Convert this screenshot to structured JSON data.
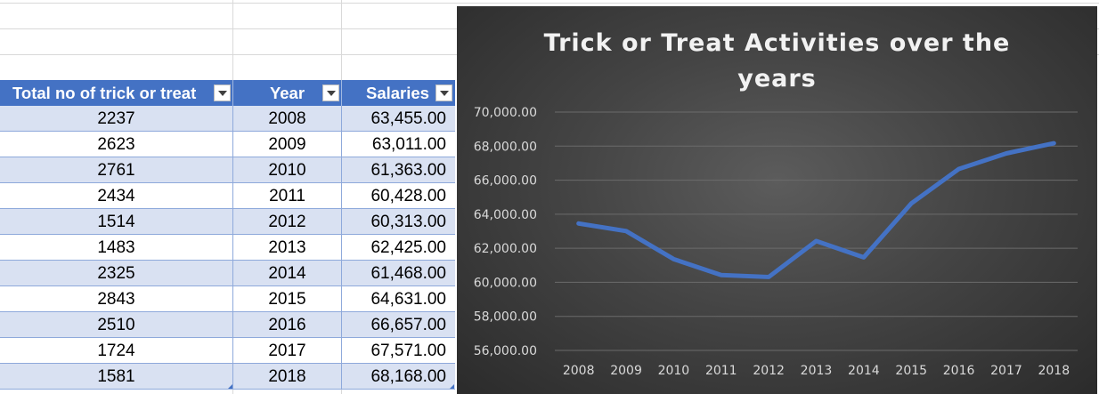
{
  "table": {
    "headers": [
      "Total no of trick or treat",
      "Year",
      "Salaries"
    ],
    "rows": [
      [
        "2237",
        "2008",
        "63,455.00"
      ],
      [
        "2623",
        "2009",
        "63,011.00"
      ],
      [
        "2761",
        "2010",
        "61,363.00"
      ],
      [
        "2434",
        "2011",
        "60,428.00"
      ],
      [
        "1514",
        "2012",
        "60,313.00"
      ],
      [
        "1483",
        "2013",
        "62,425.00"
      ],
      [
        "2325",
        "2014",
        "61,468.00"
      ],
      [
        "2843",
        "2015",
        "64,631.00"
      ],
      [
        "2510",
        "2016",
        "66,657.00"
      ],
      [
        "1724",
        "2017",
        "67,571.00"
      ],
      [
        "1581",
        "2018",
        "68,168.00"
      ]
    ]
  },
  "chart_data": {
    "type": "line",
    "title_lines": [
      "Trick or Treat Activities over the",
      "years"
    ],
    "categories": [
      "2008",
      "2009",
      "2010",
      "2011",
      "2012",
      "2013",
      "2014",
      "2015",
      "2016",
      "2017",
      "2018"
    ],
    "series": [
      {
        "values": [
          63455,
          63011,
          61363,
          60428,
          60313,
          62425,
          61468,
          64631,
          66657,
          67571,
          68168
        ]
      }
    ],
    "ylim": [
      56000,
      70000
    ],
    "yticks": [
      "56,000.00",
      "58,000.00",
      "60,000.00",
      "62,000.00",
      "64,000.00",
      "66,000.00",
      "68,000.00",
      "70,000.00"
    ],
    "ytick_values": [
      56000,
      58000,
      60000,
      62000,
      64000,
      66000,
      68000,
      70000
    ],
    "grid": true,
    "line_color": "#4472c4"
  },
  "colors": {
    "table_header": "#4472c4",
    "table_band": "#d9e1f2",
    "chart_bg": "#404040"
  }
}
